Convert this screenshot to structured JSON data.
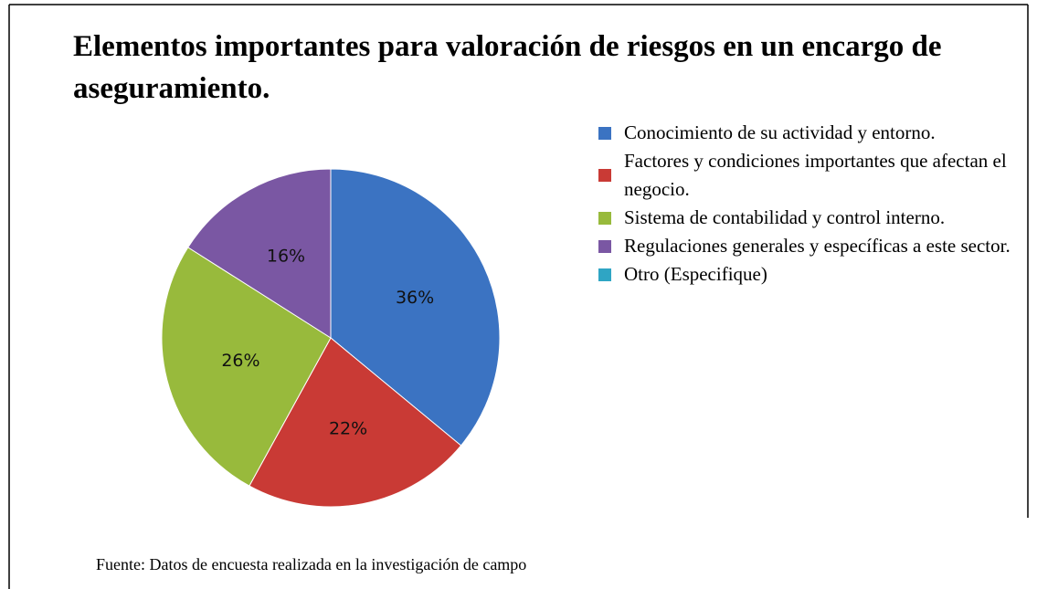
{
  "chart_data": {
    "type": "pie",
    "title": "Elementos importantes para valoración de riesgos en un encargo de aseguramiento.",
    "categories": [
      "Conocimiento de su actividad y entorno.",
      "Factores y condiciones importantes que afectan el negocio.",
      "Sistema de contabilidad y control interno.",
      "Regulaciones generales y específicas a este sector.",
      "Otro (Especifique)"
    ],
    "values": [
      36,
      22,
      26,
      16,
      0
    ],
    "value_labels": [
      "36%",
      "22%",
      "26%",
      "16%",
      null
    ],
    "colors": [
      "#3b73c2",
      "#c93a35",
      "#98ba3c",
      "#7a57a3",
      "#2fa5c4"
    ],
    "legend": "right",
    "source": "Fuente: Datos de encuesta realizada en la investigación de campo"
  }
}
